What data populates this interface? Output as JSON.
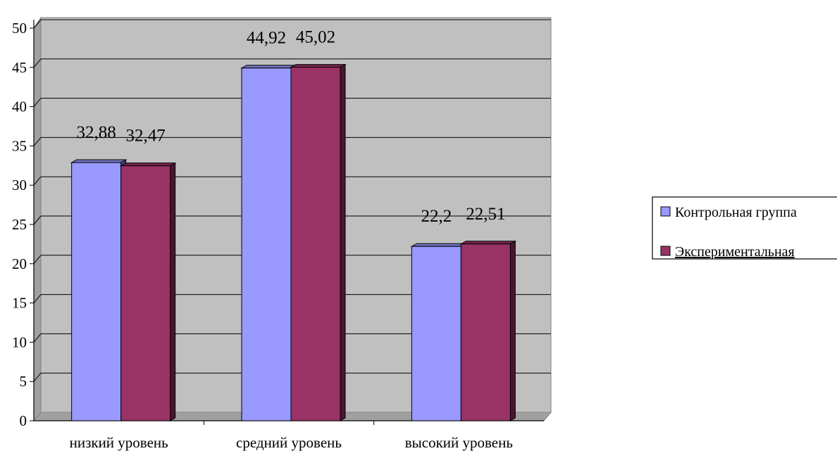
{
  "chart_data": {
    "type": "bar",
    "categories": [
      "низкий уровень",
      "средний уровень",
      "высокий уровень"
    ],
    "series": [
      {
        "name": "Контрольная группа",
        "values": [
          32.88,
          44.92,
          22.2
        ],
        "labels": [
          "32,88",
          "44,92",
          "22,2"
        ],
        "color": "#9999ff"
      },
      {
        "name": "Экспериментальная",
        "values": [
          32.47,
          45.02,
          22.51
        ],
        "labels": [
          "32,47",
          "45,02",
          "22,51"
        ],
        "color": "#993366"
      }
    ],
    "yticks": [
      "0",
      "5",
      "10",
      "15",
      "20",
      "25",
      "30",
      "35",
      "40",
      "45",
      "50"
    ],
    "ylim": [
      0,
      50
    ],
    "grid": true,
    "legend": "right",
    "plot_background": "#c0c0c0"
  }
}
